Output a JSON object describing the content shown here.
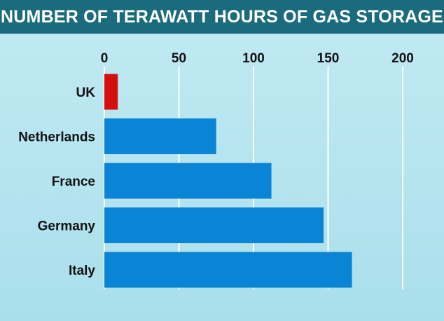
{
  "chart_data": {
    "type": "bar",
    "orientation": "horizontal",
    "title": "NUMBER OF TERAWATT HOURS OF GAS STORAGE",
    "categories": [
      "UK",
      "Netherlands",
      "France",
      "Germany",
      "Italy"
    ],
    "values": [
      9,
      75,
      112,
      147,
      166
    ],
    "xlim": [
      0,
      200
    ],
    "xticks": [
      0,
      50,
      100,
      150,
      200
    ],
    "xtick_labels": [
      "0",
      "50",
      "100",
      "150",
      "200"
    ],
    "x_axis_position": "top",
    "grid": "vertical lines",
    "colors": {
      "title_bar": "#1a6b7c",
      "title_text": "#ffffff",
      "highlight_bar": "#d40f0f",
      "default_bar": "#0a85d6",
      "gridline": "#ffffff",
      "background": "#b3e3ee"
    },
    "highlight_category": "UK"
  }
}
